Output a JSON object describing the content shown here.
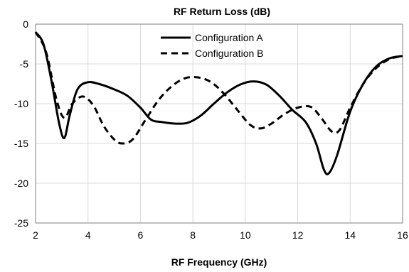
{
  "chart_data": {
    "type": "line",
    "title": "RF Return Loss (dB)",
    "xlabel": "RF Frequency (GHz)",
    "ylabel": "",
    "xlim": [
      2,
      16
    ],
    "ylim": [
      -25,
      0
    ],
    "xticks": [
      2,
      4,
      6,
      8,
      10,
      12,
      14,
      16
    ],
    "yticks": [
      0,
      -5,
      -10,
      -15,
      -20,
      -25
    ],
    "grid": true,
    "legend_position": "top-center",
    "series": [
      {
        "name": "Configuration A",
        "style": "solid",
        "color": "#000000",
        "x": [
          2.0,
          2.3,
          2.6,
          2.9,
          3.1,
          3.3,
          3.6,
          4.0,
          4.5,
          5.0,
          5.5,
          6.0,
          6.4,
          6.8,
          7.3,
          7.8,
          8.3,
          8.8,
          9.3,
          9.8,
          10.3,
          10.8,
          11.3,
          11.8,
          12.3,
          12.7,
          13.0,
          13.2,
          13.5,
          14.0,
          14.5,
          15.0,
          15.5,
          16.0
        ],
        "y": [
          -1.0,
          -2.5,
          -7.0,
          -12.5,
          -14.3,
          -11.5,
          -8.2,
          -7.3,
          -7.6,
          -8.2,
          -9.0,
          -10.5,
          -12.0,
          -12.3,
          -12.5,
          -12.4,
          -11.5,
          -10.0,
          -8.6,
          -7.6,
          -7.2,
          -7.6,
          -9.0,
          -10.8,
          -12.3,
          -15.0,
          -18.3,
          -18.7,
          -16.5,
          -11.0,
          -7.5,
          -5.3,
          -4.3,
          -4.0
        ]
      },
      {
        "name": "Configuration B",
        "style": "dashed",
        "color": "#000000",
        "x": [
          2.0,
          2.4,
          2.8,
          3.1,
          3.4,
          3.8,
          4.2,
          4.6,
          5.0,
          5.3,
          5.7,
          6.2,
          6.7,
          7.2,
          7.7,
          8.2,
          8.7,
          9.2,
          9.7,
          10.2,
          10.6,
          11.0,
          11.5,
          12.0,
          12.5,
          12.9,
          13.3,
          13.6,
          14.0,
          14.5,
          15.0,
          15.5,
          16.0
        ],
        "y": [
          -1.0,
          -3.5,
          -9.5,
          -11.8,
          -10.0,
          -9.1,
          -10.2,
          -12.8,
          -14.5,
          -15.0,
          -14.5,
          -12.0,
          -9.5,
          -7.8,
          -6.8,
          -6.7,
          -7.3,
          -8.8,
          -10.8,
          -12.7,
          -13.1,
          -12.5,
          -11.3,
          -10.5,
          -10.4,
          -11.8,
          -13.5,
          -13.3,
          -10.5,
          -7.5,
          -5.5,
          -4.4,
          -4.0
        ]
      }
    ]
  }
}
